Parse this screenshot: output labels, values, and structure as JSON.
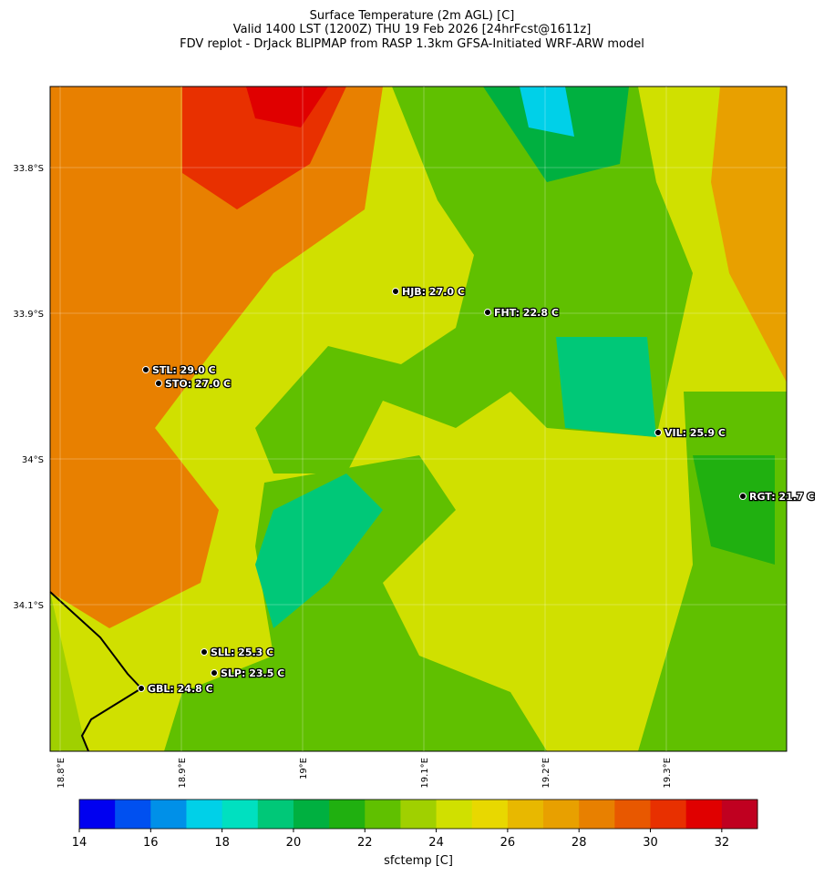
{
  "header": {
    "title_lines": [
      "Surface Temperature (2m AGL) [C]",
      "Valid 1400 LST (1200Z) THU 19 Feb 2026 [24hrFcst@1611z]",
      "FDV replot - DrJack BLIPMAP from RASP 1.3km GFSA-Initiated WRF-ARW model"
    ]
  },
  "map": {
    "lat_ticks": [
      "33.8°S",
      "33.9°S",
      "34°S",
      "34.1°S"
    ],
    "lon_ticks": [
      "18.8°E",
      "18.9°E",
      "19°E",
      "19.1°E",
      "19.2°E",
      "19.3°E"
    ],
    "stations": [
      "HJB: 27.0 C",
      "FHT: 22.8 C",
      "STL: 29.0 C",
      "STO: 27.0 C",
      "VIL: 25.9 C",
      "RGT: 21.7 C",
      "SLL: 25.3 C",
      "SLP: 23.5 C",
      "GBL: 24.8 C"
    ]
  },
  "colorbar": {
    "label": "sfctemp [C]",
    "range": [
      14,
      33
    ],
    "ticks": [
      14,
      16,
      18,
      20,
      22,
      24,
      26,
      28,
      30,
      32
    ],
    "colors": [
      "#0000f0",
      "#0050f0",
      "#0090e8",
      "#00d0e8",
      "#00e0c0",
      "#00c878",
      "#00b040",
      "#20b010",
      "#60c000",
      "#a0d000",
      "#d0e000",
      "#e8d800",
      "#e8b800",
      "#e8a000",
      "#e88000",
      "#e85800",
      "#e83000",
      "#e00000",
      "#c00020"
    ]
  }
}
